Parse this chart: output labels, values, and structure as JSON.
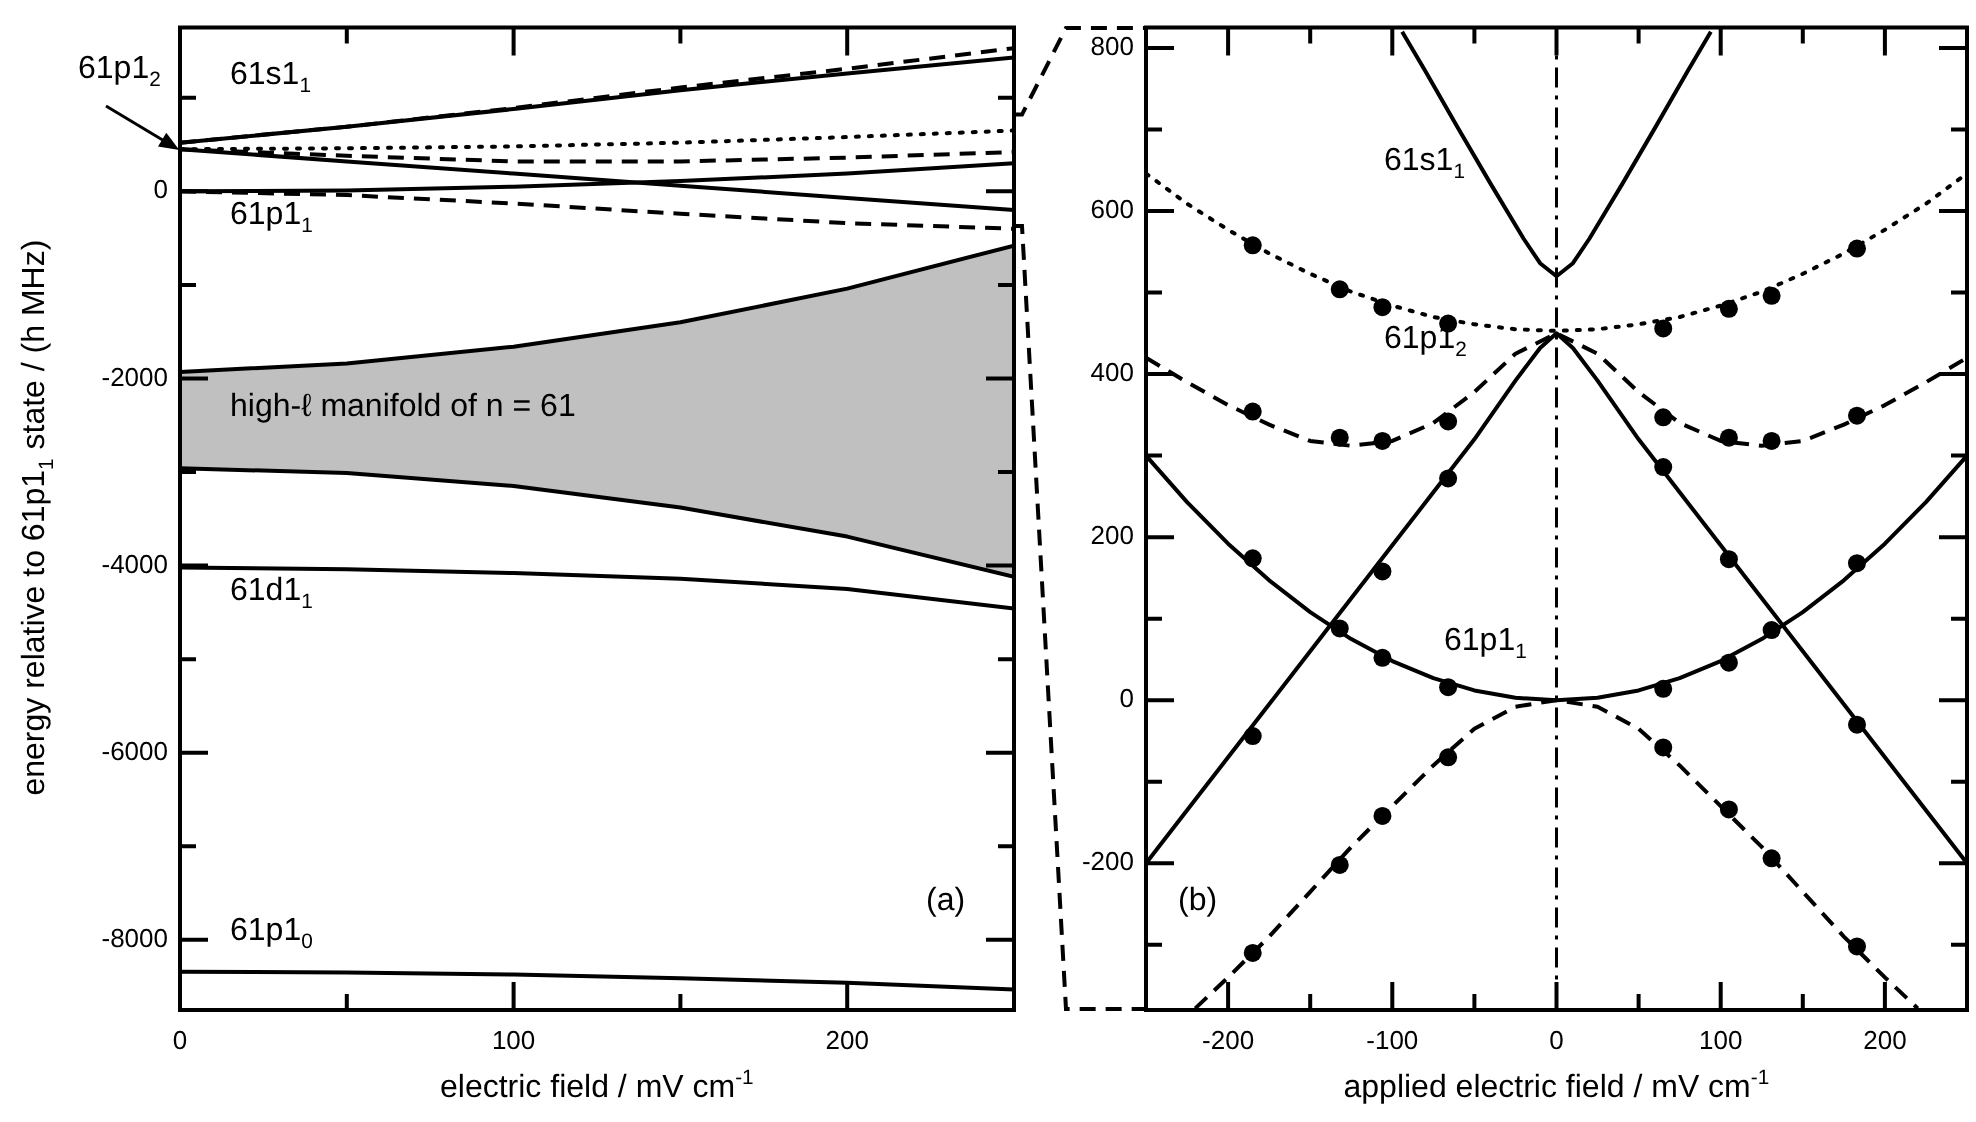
{
  "chart_data": [
    {
      "type": "line",
      "xlabel": "electric field / mV cm$^{-1}$",
      "ylabel": "energy relative to 61p1$_{1}$ state / (h MHz)",
      "xlim": [
        0,
        250
      ],
      "ylim": [
        -8750,
        1750
      ],
      "xticks": [
        0,
        {
          "value": 50,
          "label": null
        },
        100,
        {
          "value": 150,
          "label": null
        },
        200,
        {
          "value": 250,
          "label": null
        }
      ],
      "yticks": [
        {
          "value": 1000,
          "label": null
        },
        0,
        {
          "value": -1000,
          "label": null
        },
        -2000,
        {
          "value": -3000,
          "label": null
        },
        -4000,
        {
          "value": -5000,
          "label": null
        },
        -6000,
        {
          "value": -7000,
          "label": null
        },
        -8000
      ],
      "series": [
        {
          "line_style": "dashed",
          "color": "#000000",
          "x": [
            0,
            50,
            100,
            150,
            200,
            250
          ],
          "values": [
            520,
            690,
            890,
            1110,
            1310,
            1530
          ]
        },
        {
          "name": "61s1$_{1}$",
          "line_style": "solid",
          "color": "#000000",
          "x": [
            0,
            50,
            100,
            150,
            200,
            250
          ],
          "values": [
            520,
            690,
            880,
            1080,
            1260,
            1430
          ]
        },
        {
          "line_style": "dotted",
          "color": "#000000",
          "x": [
            0,
            50,
            100,
            150,
            200,
            250
          ],
          "values": [
            450,
            460,
            480,
            520,
            580,
            650
          ]
        },
        {
          "line_style": "dashed",
          "color": "#000000",
          "x": [
            0,
            50,
            100,
            150,
            200,
            250
          ],
          "values": [
            450,
            380,
            320,
            320,
            360,
            420
          ]
        },
        {
          "line_style": "solid",
          "color": "#000000",
          "x": [
            0,
            50,
            100,
            150,
            200,
            250
          ],
          "values": [
            450,
            320,
            190,
            60,
            -70,
            -200
          ]
        },
        {
          "name": "61p1$_{1}$",
          "line_style": "solid",
          "color": "#000000",
          "x": [
            0,
            50,
            100,
            150,
            200,
            250
          ],
          "values": [
            0,
            10,
            50,
            110,
            190,
            300
          ]
        },
        {
          "line_style": "dashed",
          "color": "#000000",
          "x": [
            0,
            50,
            100,
            150,
            200,
            250
          ],
          "values": [
            0,
            -40,
            -130,
            -240,
            -340,
            -400
          ]
        },
        {
          "name": "61d1$_{1}$",
          "line_style": "solid",
          "color": "#000000",
          "x": [
            0,
            50,
            100,
            150,
            200,
            250
          ],
          "values": [
            -4020,
            -4040,
            -4080,
            -4140,
            -4250,
            -4460
          ]
        },
        {
          "name": "61p1$_{0}$",
          "line_style": "solid",
          "color": "#000000",
          "x": [
            0,
            50,
            100,
            150,
            200,
            250
          ],
          "values": [
            -8340,
            -8350,
            -8370,
            -8410,
            -8460,
            -8530
          ]
        },
        {
          "line_style": "solid",
          "color": "#000000",
          "x": [
            0,
            50,
            100,
            150,
            200,
            250
          ],
          "values": [
            -2960,
            -3010,
            -3150,
            -3380,
            -3690,
            -4120
          ]
        },
        {
          "name": "high-ℓ manifold of n = 61",
          "line_style": "solid",
          "color": "#000000",
          "x": [
            0,
            50,
            100,
            150,
            200,
            250
          ],
          "values": [
            -1930,
            -1840,
            -1660,
            -1400,
            -1040,
            -580
          ],
          "lower": [
            -2960,
            -3010,
            -3150,
            -3380,
            -3690,
            -4120
          ],
          "upper": [
            -1930,
            -1840,
            -1660,
            -1400,
            -1040,
            -580
          ]
        }
      ],
      "annotations": [
        {
          "text": "61p1$_{2}$",
          "x": 0,
          "y": 450
        },
        "(a)"
      ]
    },
    {
      "type": "line",
      "xlabel": "applied electric field / mV cm$^{-1}$",
      "xlim": [
        -250,
        250
      ],
      "ylim": [
        -380,
        825
      ],
      "xticks": [
        -200,
        {
          "value": -150,
          "label": null
        },
        -100,
        {
          "value": -50,
          "label": null
        },
        0,
        {
          "value": 50,
          "label": null
        },
        100,
        {
          "value": 150,
          "label": null
        },
        200
      ],
      "yticks": [
        {
          "value": -300,
          "label": null
        },
        -200,
        {
          "value": -100,
          "label": null
        },
        0,
        {
          "value": 100,
          "label": null
        },
        200,
        {
          "value": 300,
          "label": null
        },
        400,
        {
          "value": 500,
          "label": null
        },
        600,
        {
          "value": 700,
          "label": null
        },
        800
      ],
      "ref_lines": [
        {
          "axis": "x",
          "value": 0,
          "line_style": "dashdot",
          "color": "#000000"
        }
      ],
      "series": [
        {
          "name": "61s1$_{1}$",
          "line_style": "solid",
          "color": "#000000",
          "x": [
            -94,
            -80,
            -60,
            -40,
            -20,
            -10,
            0,
            10,
            20,
            40,
            60,
            80,
            94
          ],
          "values": [
            820,
            772,
            702,
            633,
            566,
            536,
            520,
            536,
            566,
            633,
            702,
            772,
            820
          ]
        },
        {
          "line_style": "dotted",
          "color": "#000000",
          "x": [
            -250,
            -225,
            -200,
            -175,
            -150,
            -125,
            -100,
            -75,
            -50,
            -25,
            0,
            25,
            50,
            75,
            100,
            125,
            150,
            175,
            200,
            225,
            250
          ],
          "values": [
            646,
            609,
            577,
            548,
            523,
            501,
            484,
            470,
            461,
            455,
            453,
            455,
            461,
            470,
            484,
            501,
            523,
            548,
            577,
            609,
            646
          ]
        },
        {
          "name": "61p1$_{2}$",
          "line_style": "dashed",
          "color": "#000000",
          "x": [
            -250,
            -225,
            -200,
            -175,
            -150,
            -125,
            -100,
            -75,
            -50,
            -25,
            0,
            25,
            50,
            75,
            100,
            125,
            150,
            175,
            200,
            225,
            250
          ],
          "values": [
            420,
            390,
            362,
            338,
            318,
            312,
            318,
            340,
            378,
            425,
            450,
            425,
            378,
            340,
            318,
            312,
            318,
            338,
            362,
            390,
            420
          ]
        },
        {
          "line_style": "solid",
          "color": "#000000",
          "x": [
            -250,
            -225,
            -200,
            -175,
            -150,
            -125,
            -100,
            -75,
            -50,
            -25,
            -10,
            0,
            10,
            25,
            50,
            75,
            100,
            125,
            150,
            175,
            200,
            225,
            250
          ],
          "values": [
            -200,
            -135,
            -70,
            -5,
            60,
            125,
            190,
            255,
            320,
            392,
            432,
            450,
            432,
            392,
            320,
            255,
            190,
            125,
            60,
            -5,
            -70,
            -135,
            -200
          ]
        },
        {
          "name": "61p1$_{1}$",
          "line_style": "solid",
          "color": "#000000",
          "x": [
            -250,
            -225,
            -200,
            -175,
            -150,
            -125,
            -100,
            -75,
            -50,
            -25,
            0,
            25,
            50,
            75,
            100,
            125,
            150,
            175,
            200,
            225,
            250
          ],
          "values": [
            300,
            243,
            192,
            147,
            108,
            75,
            48,
            27,
            12,
            3,
            0,
            3,
            12,
            27,
            48,
            75,
            108,
            147,
            192,
            243,
            300
          ]
        },
        {
          "line_style": "dashed",
          "color": "#000000",
          "x": [
            -220,
            -200,
            -175,
            -150,
            -125,
            -100,
            -75,
            -50,
            -25,
            0,
            25,
            50,
            75,
            100,
            125,
            150,
            175,
            200,
            220
          ],
          "values": [
            -378,
            -340,
            -290,
            -235,
            -180,
            -130,
            -80,
            -35,
            -8,
            0,
            -8,
            -35,
            -80,
            -130,
            -180,
            -235,
            -290,
            -340,
            -378
          ]
        },
        {
          "type": "scatter",
          "marker": "circle",
          "color": "#000000",
          "x": [
            -185,
            -132,
            -106,
            -66,
            65,
            105,
            131,
            183,
            -185,
            -132,
            -106,
            -66,
            65,
            105,
            131,
            183,
            -185,
            -106,
            -66,
            65,
            105,
            183,
            -185,
            -132,
            -106,
            -66,
            65,
            105,
            131,
            183,
            -185,
            -132,
            -106,
            -66,
            65,
            105,
            131,
            183
          ],
          "values": [
            558,
            504,
            482,
            462,
            456,
            480,
            496,
            554,
            354,
            322,
            318,
            342,
            347,
            322,
            318,
            349,
            -44,
            158,
            272,
            286,
            173,
            -30,
            174,
            88,
            52,
            16,
            14,
            46,
            86,
            168,
            -310,
            -202,
            -142,
            -70,
            -58,
            -134,
            -194,
            -302
          ]
        }
      ],
      "annotations": [
        "(b)"
      ]
    }
  ]
}
